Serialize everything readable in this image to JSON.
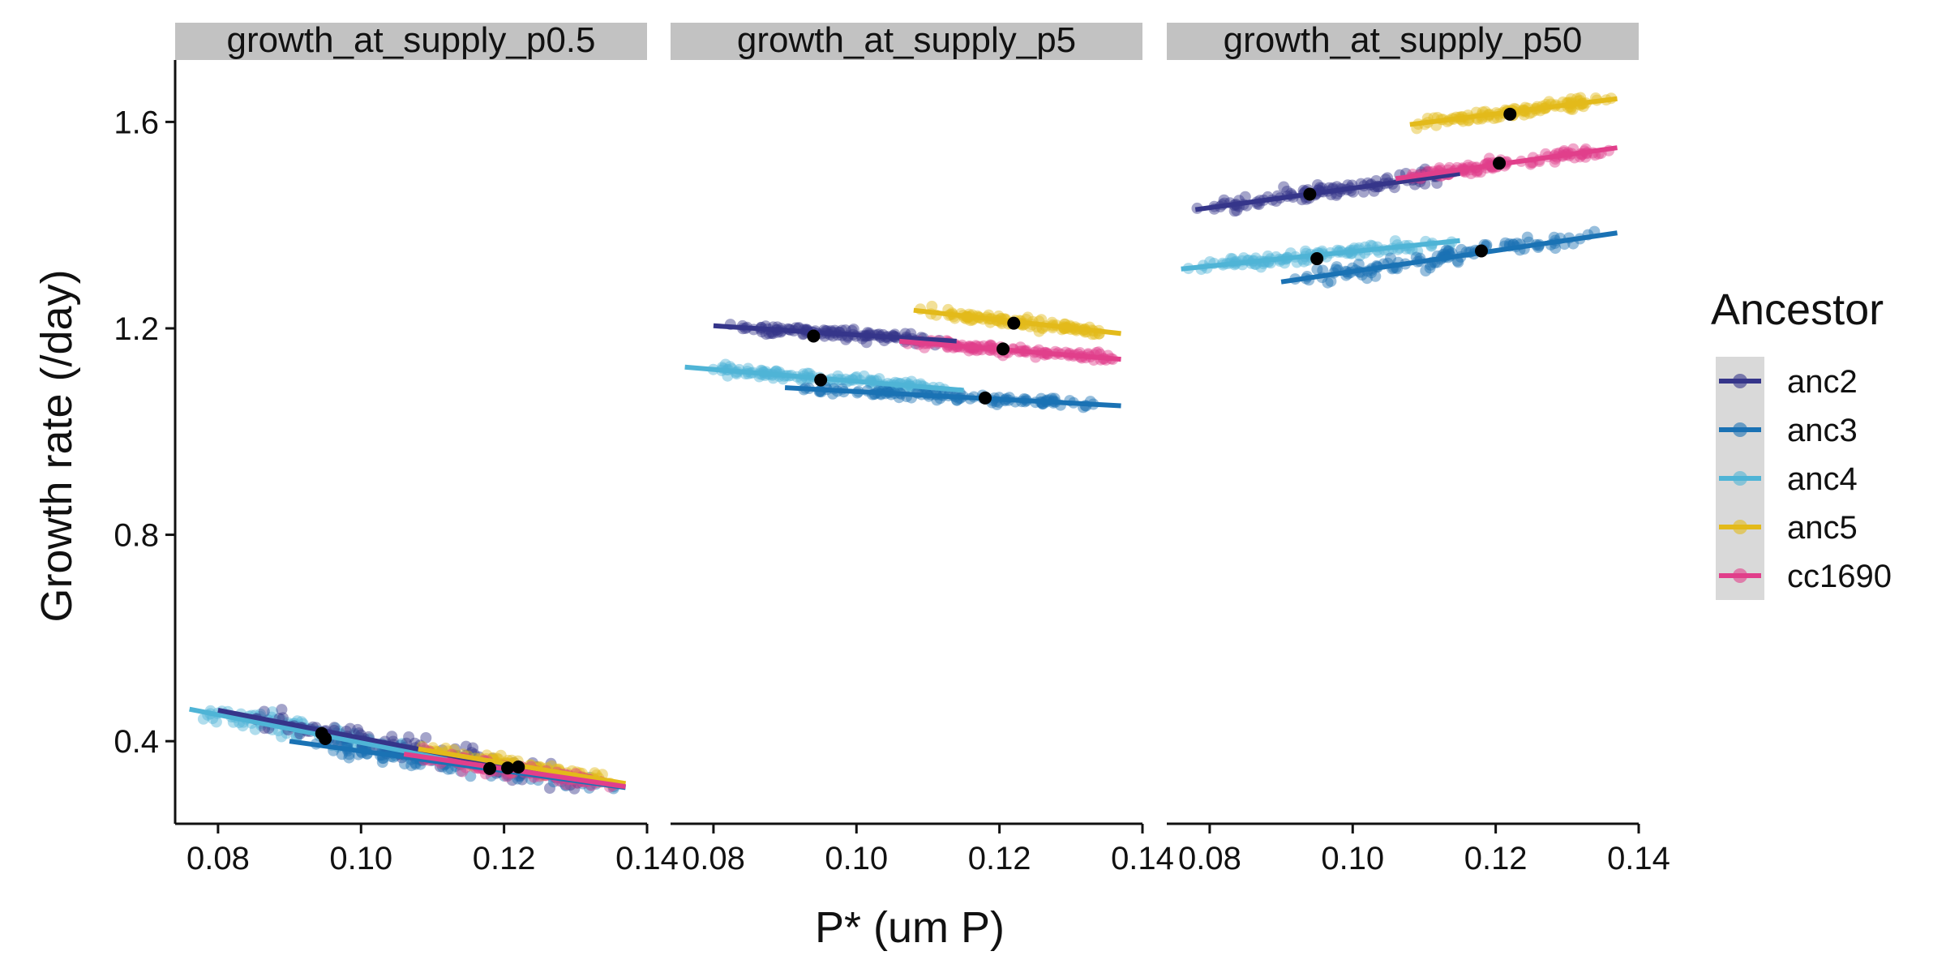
{
  "chart_data": {
    "type": "scatter",
    "xlabel": "P* (um P)",
    "ylabel": "Growth rate (/day)",
    "xlim": [
      0.074,
      0.14
    ],
    "ylim": [
      0.24,
      1.72
    ],
    "x_ticks": [
      "0.08",
      "0.10",
      "0.12",
      "0.14"
    ],
    "y_ticks": [
      "0.4",
      "0.8",
      "1.2",
      "1.6"
    ],
    "grid": false,
    "legend": {
      "title": "Ancestor",
      "placement": "right",
      "entries": [
        "anc2",
        "anc3",
        "anc4",
        "anc5",
        "cc1690"
      ]
    },
    "series_colors": {
      "anc2": "#35358A",
      "anc3": "#1A72B4",
      "anc4": "#4FB4D6",
      "anc5": "#E3BA1A",
      "cc1690": "#E13F8B"
    },
    "panels": [
      {
        "title": "growth_at_supply_p0.5",
        "series": [
          {
            "name": "anc2",
            "x_range": [
              0.08,
              0.132
            ],
            "y_range": [
              0.46,
              0.32
            ],
            "mean": [
              0.0945,
              0.415
            ]
          },
          {
            "name": "anc3",
            "x_range": [
              0.09,
              0.137
            ],
            "y_range": [
              0.4,
              0.31
            ],
            "mean": [
              0.118,
              0.347
            ]
          },
          {
            "name": "anc4",
            "x_range": [
              0.076,
              0.112
            ],
            "y_range": [
              0.462,
              0.365
            ],
            "mean": [
              0.095,
              0.405
            ]
          },
          {
            "name": "anc5",
            "x_range": [
              0.108,
              0.137
            ],
            "y_range": [
              0.385,
              0.318
            ],
            "mean": [
              0.122,
              0.35
            ]
          },
          {
            "name": "cc1690",
            "x_range": [
              0.106,
              0.137
            ],
            "y_range": [
              0.375,
              0.312
            ],
            "mean": [
              0.1205,
              0.348
            ]
          }
        ]
      },
      {
        "title": "growth_at_supply_p5",
        "series": [
          {
            "name": "anc2",
            "x_range": [
              0.08,
              0.114
            ],
            "y_range": [
              1.205,
              1.175
            ],
            "mean": [
              0.094,
              1.185
            ]
          },
          {
            "name": "anc3",
            "x_range": [
              0.09,
              0.137
            ],
            "y_range": [
              1.085,
              1.05
            ],
            "mean": [
              0.118,
              1.065
            ]
          },
          {
            "name": "anc4",
            "x_range": [
              0.076,
              0.115
            ],
            "y_range": [
              1.125,
              1.08
            ],
            "mean": [
              0.095,
              1.1
            ]
          },
          {
            "name": "anc5",
            "x_range": [
              0.108,
              0.137
            ],
            "y_range": [
              1.235,
              1.19
            ],
            "mean": [
              0.122,
              1.21
            ]
          },
          {
            "name": "cc1690",
            "x_range": [
              0.106,
              0.137
            ],
            "y_range": [
              1.175,
              1.14
            ],
            "mean": [
              0.1205,
              1.16
            ]
          }
        ]
      },
      {
        "title": "growth_at_supply_p50",
        "series": [
          {
            "name": "anc2",
            "x_range": [
              0.078,
              0.115
            ],
            "y_range": [
              1.43,
              1.5
            ],
            "mean": [
              0.094,
              1.46
            ]
          },
          {
            "name": "anc3",
            "x_range": [
              0.09,
              0.137
            ],
            "y_range": [
              1.29,
              1.385
            ],
            "mean": [
              0.118,
              1.35
            ]
          },
          {
            "name": "anc4",
            "x_range": [
              0.076,
              0.115
            ],
            "y_range": [
              1.315,
              1.37
            ],
            "mean": [
              0.095,
              1.335
            ]
          },
          {
            "name": "anc5",
            "x_range": [
              0.108,
              0.137
            ],
            "y_range": [
              1.595,
              1.645
            ],
            "mean": [
              0.122,
              1.615
            ]
          },
          {
            "name": "cc1690",
            "x_range": [
              0.106,
              0.137
            ],
            "y_range": [
              1.49,
              1.55
            ],
            "mean": [
              0.1205,
              1.52
            ]
          }
        ]
      }
    ]
  }
}
